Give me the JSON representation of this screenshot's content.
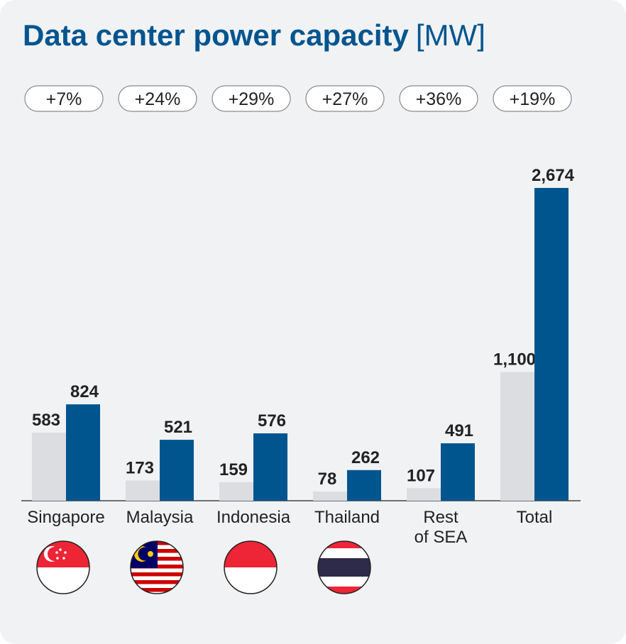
{
  "chart_data": {
    "type": "bar",
    "title": "Data center power capacity",
    "unit": "[MW]",
    "categories": [
      "Singapore",
      "Malaysia",
      "Indonesia",
      "Thailand",
      "Rest\nof SEA",
      "Total"
    ],
    "annotations": [
      "+7%",
      "+24%",
      "+29%",
      "+27%",
      "+36%",
      "+19%"
    ],
    "series": [
      {
        "color": "#dcdde0",
        "values": [
          583,
          173,
          159,
          78,
          107,
          1100
        ],
        "value_labels": [
          "583",
          "173",
          "159",
          "78",
          "107",
          "1,100"
        ]
      },
      {
        "color": "#00558f",
        "values": [
          824,
          521,
          576,
          262,
          491,
          2674
        ],
        "value_labels": [
          "824",
          "521",
          "576",
          "262",
          "491",
          "2,674"
        ]
      }
    ]
  }
}
